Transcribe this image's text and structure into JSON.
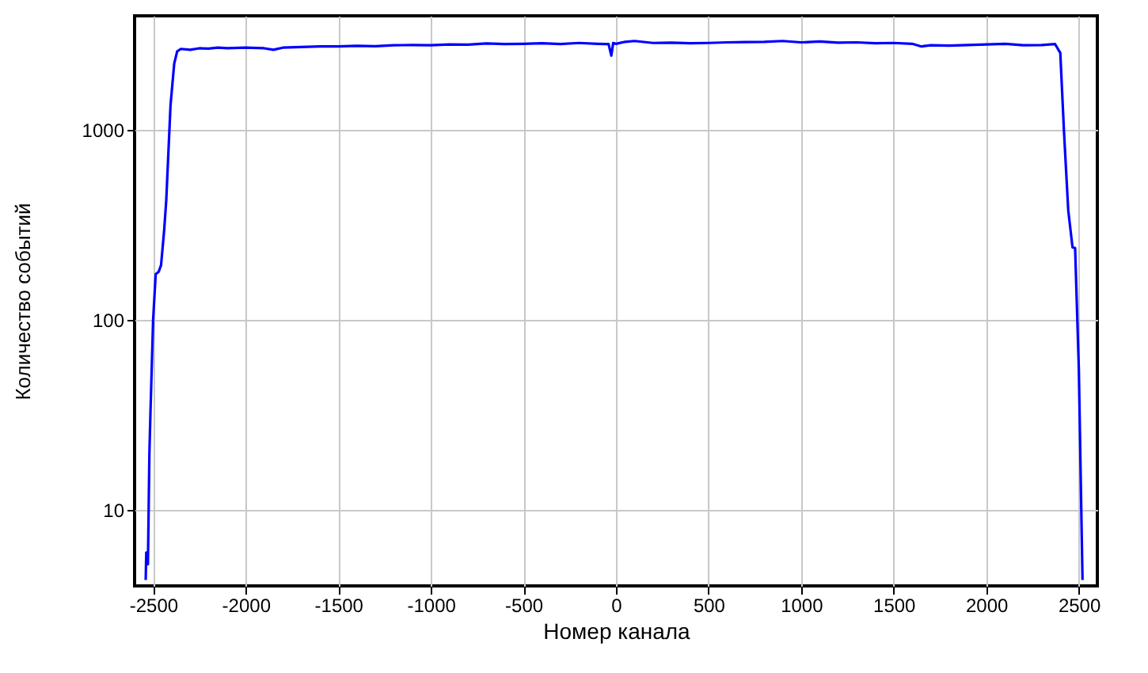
{
  "chart_data": {
    "type": "line",
    "xlabel": "Номер канала",
    "ylabel": "Количество событий",
    "x": [
      -2540,
      -2537,
      -2528,
      -2520,
      -2514,
      -2500,
      -2486,
      -2470,
      -2457,
      -2440,
      -2429,
      -2406,
      -2386,
      -2370,
      -2350,
      -2300,
      -2250,
      -2200,
      -2150,
      -2100,
      -2000,
      -1900,
      -1850,
      -1800,
      -1700,
      -1600,
      -1500,
      -1400,
      -1300,
      -1200,
      -1100,
      -1000,
      -900,
      -800,
      -700,
      -600,
      -500,
      -400,
      -300,
      -200,
      -100,
      -40,
      -25,
      -15,
      0,
      50,
      100,
      200,
      300,
      400,
      500,
      600,
      700,
      800,
      900,
      1000,
      1100,
      1200,
      1300,
      1400,
      1500,
      1600,
      1650,
      1700,
      1800,
      1900,
      2000,
      2100,
      2200,
      2300,
      2372,
      2400,
      2420,
      2443,
      2466,
      2480,
      2500,
      2520
    ],
    "series": [
      {
        "color": "#0000ff",
        "values": [
          4.3,
          6.0,
          5.2,
          20,
          33.5,
          100,
          175,
          180,
          195,
          300,
          428,
          1350,
          2240,
          2600,
          2680,
          2650,
          2700,
          2690,
          2720,
          2700,
          2720,
          2700,
          2650,
          2720,
          2740,
          2760,
          2760,
          2780,
          2770,
          2800,
          2810,
          2800,
          2830,
          2820,
          2860,
          2840,
          2850,
          2870,
          2840,
          2880,
          2850,
          2840,
          2470,
          2880,
          2850,
          2920,
          2950,
          2880,
          2890,
          2870,
          2880,
          2900,
          2910,
          2920,
          2950,
          2900,
          2930,
          2890,
          2900,
          2870,
          2880,
          2850,
          2760,
          2800,
          2790,
          2810,
          2830,
          2850,
          2800,
          2810,
          2840,
          2550,
          980,
          378,
          242,
          240,
          56,
          4.3
        ]
      }
    ],
    "xlim": [
      -2600,
      2600
    ],
    "xticks": [
      -2500,
      -2000,
      -1500,
      -1000,
      -500,
      0,
      500,
      1000,
      1500,
      2000,
      2500
    ],
    "ylim": [
      4,
      4000
    ],
    "yticks": [
      10,
      100,
      1000
    ],
    "log": "y",
    "grid": true
  }
}
